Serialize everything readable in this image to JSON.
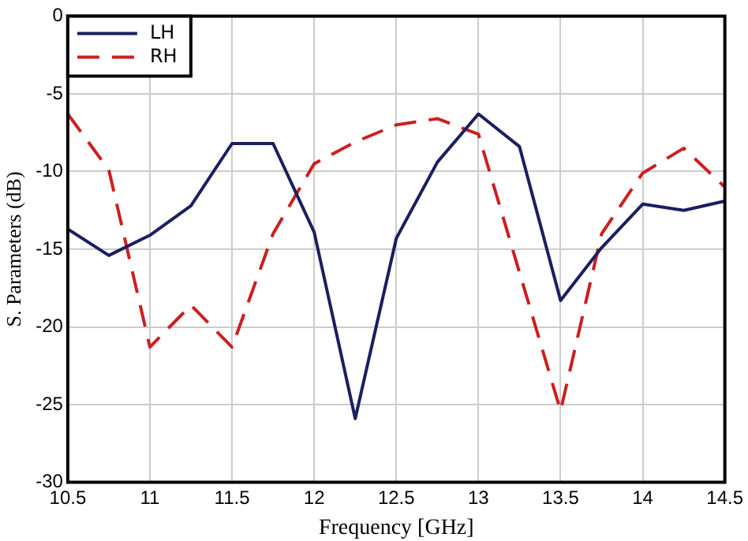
{
  "chart_data": {
    "type": "line",
    "xlabel": "Frequency [GHz]",
    "ylabel": "S. Parameters (dB)",
    "x": [
      10.5,
      10.75,
      11,
      11.25,
      11.5,
      11.75,
      12,
      12.25,
      12.5,
      12.75,
      13,
      13.25,
      13.5,
      13.75,
      14,
      14.25,
      14.5
    ],
    "series": [
      {
        "name": "LH",
        "color": "#1a1f5e",
        "line_style": "solid",
        "values": [
          -13.7,
          -15.4,
          -14.1,
          -12.2,
          -8.2,
          -8.2,
          -13.9,
          -25.9,
          -14.3,
          -9.4,
          -6.3,
          -8.4,
          -18.3,
          -14.9,
          -12.1,
          -12.5,
          -11.9
        ]
      },
      {
        "name": "RH",
        "color": "#cc1f1f",
        "line_style": "dashed",
        "values": [
          -6.3,
          -9.9,
          -21.3,
          -18.6,
          -21.3,
          -14,
          -9.5,
          -8.1,
          -7,
          -6.6,
          -7.6,
          -16.5,
          -25.4,
          -14,
          -10.1,
          -8.5,
          -11
        ]
      }
    ],
    "xlim": [
      10.5,
      14.5
    ],
    "xticks": [
      10.5,
      11,
      11.5,
      12,
      12.5,
      13,
      13.5,
      14,
      14.5
    ],
    "ylim": [
      -30,
      0
    ],
    "yticks": [
      -30,
      -25,
      -20,
      -15,
      -10,
      -5,
      0
    ],
    "grid": true,
    "legend": "top left",
    "marker": "none"
  }
}
